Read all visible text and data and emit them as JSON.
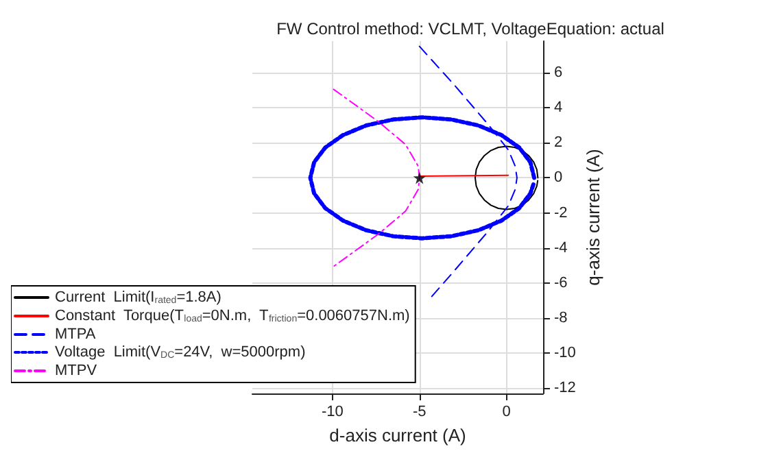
{
  "chart_data": {
    "type": "line",
    "title": "FW Control method: VCLMT, VoltageEquation: actual",
    "xlabel": "d-axis current (A)",
    "ylabel": "q-axis current (A)",
    "xlim": [
      -14.6,
      2.1
    ],
    "ylim": [
      -12.3,
      7.8
    ],
    "xticks": [
      -10,
      -5,
      0
    ],
    "yticks": [
      -12,
      -10,
      -8,
      -6,
      -4,
      -2,
      0,
      2,
      4,
      6
    ],
    "grid": true,
    "legend": "bottom left",
    "series": [
      {
        "name": "Current  Limit(I$_{rated}$=1.8A)",
        "color": "#000000",
        "line_style": "solid",
        "x": [
          1.8,
          1.74,
          1.56,
          1.27,
          0.9,
          0.47,
          0,
          -0.47,
          -0.9,
          -1.27,
          -1.56,
          -1.74,
          -1.8,
          -1.74,
          -1.56,
          -1.27,
          -0.9,
          -0.47,
          0,
          0.47,
          0.9,
          1.27,
          1.56,
          1.74,
          1.79
        ],
        "values": [
          0,
          0.47,
          0.9,
          1.27,
          1.56,
          1.74,
          1.8,
          1.74,
          1.56,
          1.27,
          0.9,
          0.47,
          0,
          -0.47,
          -0.9,
          -1.27,
          -1.56,
          -1.74,
          -1.8,
          -1.74,
          -1.56,
          -1.27,
          -0.9,
          -0.47,
          -0.16
        ]
      },
      {
        "name": "Constant  Torque(T$_{load}$=0N.m,  T$_{friction}$=0.0060757N.m)",
        "color": "#ff0000",
        "line_style": "solid",
        "x": [
          -5,
          0.1
        ],
        "values": [
          0.1,
          0.15
        ]
      },
      {
        "name": "MTPA",
        "color": "#0000ff",
        "line_style": "dashed",
        "x": [
          -5,
          -3,
          -1.1,
          0.1,
          0.5,
          0.6,
          0.5,
          0.1,
          -1.1,
          -3,
          -4.5
        ],
        "values": [
          7.5,
          5.3,
          3.1,
          1.6,
          0.66,
          0,
          -0.66,
          -1.6,
          -3.1,
          -5.3,
          -7
        ]
      },
      {
        "name": "Voltage  Limit(V$_{DC}$=24V,  w=5000rpm)",
        "color": "#0000ff",
        "line_style": "dotted",
        "x": [
          1.59,
          1.37,
          0.73,
          -0.29,
          -1.62,
          -3.17,
          -4.84,
          -6.51,
          -8.06,
          -9.39,
          -10.41,
          -11.05,
          -11.27,
          -11.05,
          -10.41,
          -9.39,
          -8.06,
          -6.51,
          -4.84,
          -3.17,
          -1.62,
          -0.29,
          0.73,
          1.37,
          1.57
        ],
        "values": [
          0,
          0.89,
          1.73,
          2.44,
          2.99,
          3.33,
          3.45,
          3.33,
          2.99,
          2.44,
          1.73,
          0.89,
          0,
          -0.89,
          -1.73,
          -2.44,
          -2.99,
          -3.33,
          -3.45,
          -3.33,
          -2.99,
          -2.44,
          -1.73,
          -0.89,
          -0.3
        ]
      },
      {
        "name": "MTPV",
        "color": "#ff00ff",
        "line_style": "dashdot",
        "x": [
          -9.93,
          -8.6,
          -7.35,
          -5.8,
          -5.07,
          -5,
          -5.07,
          -5.8,
          -7.35,
          -8.6,
          -9.93
        ],
        "values": [
          5.05,
          4.1,
          3.2,
          1.9,
          0.66,
          0,
          -0.66,
          -1.9,
          -3.2,
          -4.1,
          -5.05
        ]
      },
      {
        "type": "scatter",
        "marker": "star",
        "color": "#000000",
        "x": [
          -5
        ],
        "values": [
          0
        ]
      }
    ]
  }
}
